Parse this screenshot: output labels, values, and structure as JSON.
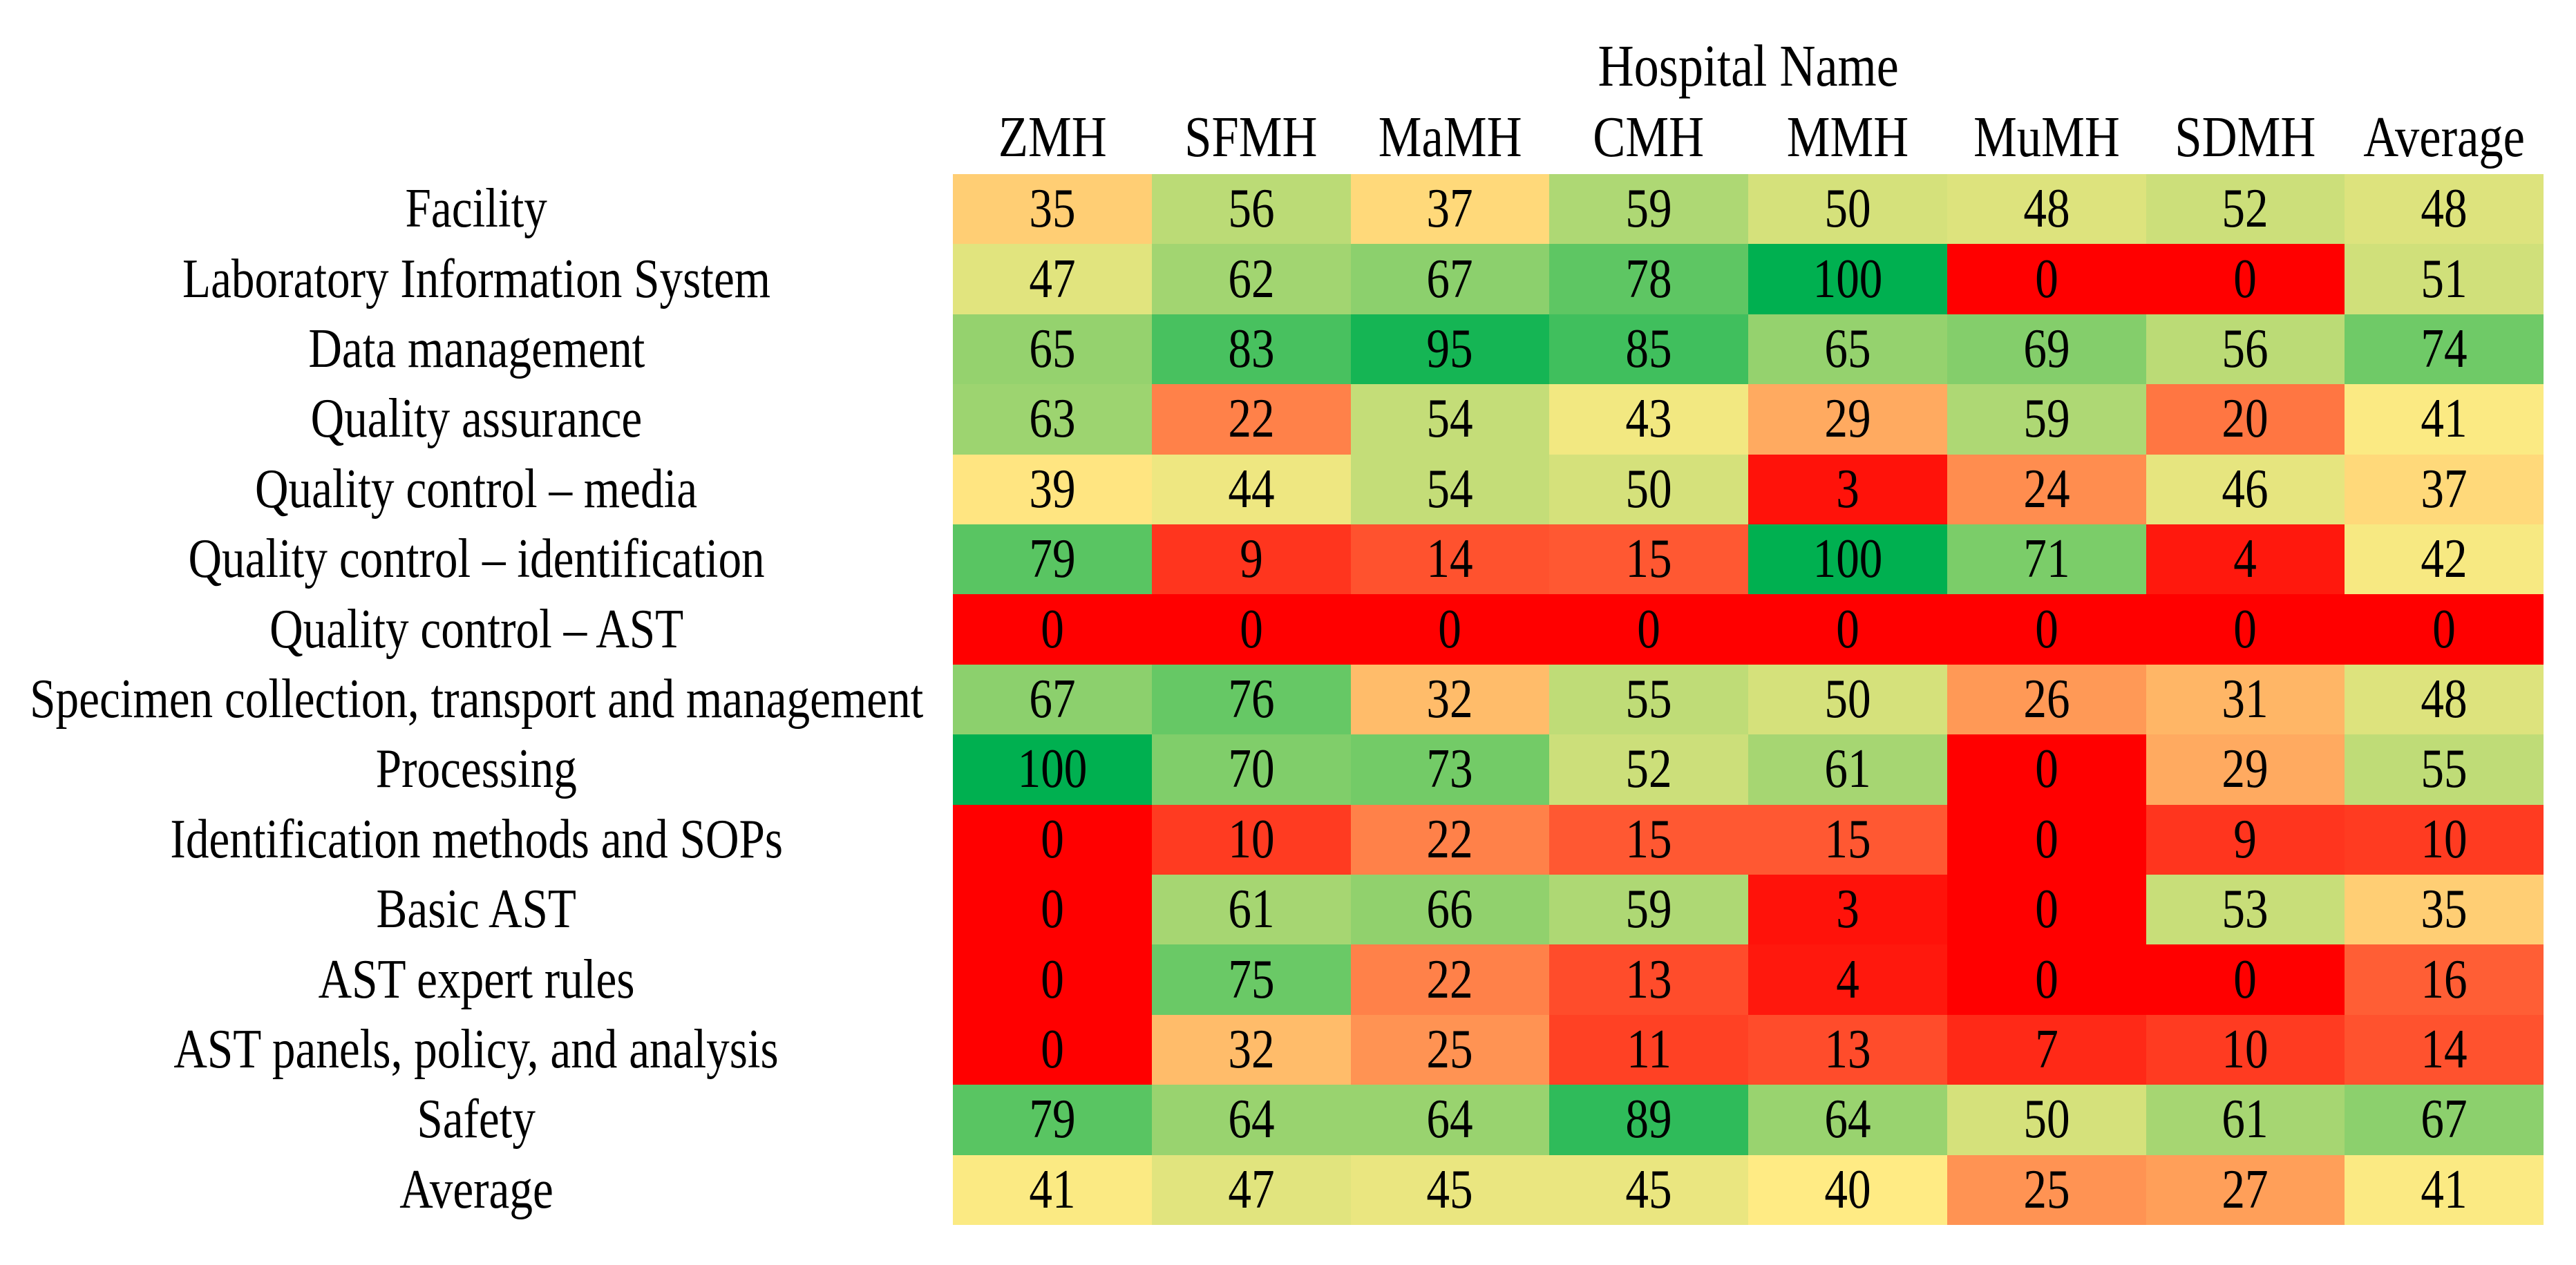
{
  "page": {
    "background": "#FFFFFF",
    "text_color": "#000000"
  },
  "chart_data": {
    "type": "heatmap",
    "title": "Hospital Name",
    "columns": [
      "ZMH",
      "SFMH",
      "MaMH",
      "CMH",
      "MMH",
      "MuMH",
      "SDMH",
      "Average"
    ],
    "rows": [
      "Facility",
      "Laboratory Information System",
      "Data management",
      "Quality assurance",
      "Quality control – media",
      "Quality control – identification",
      "Quality control – AST",
      "Specimen collection, transport and management",
      "Processing",
      "Identification methods and SOPs",
      "Basic AST",
      "AST expert rules",
      "AST panels, policy, and analysis",
      "Safety",
      "Average"
    ],
    "values": [
      [
        35,
        56,
        37,
        59,
        50,
        48,
        52,
        48
      ],
      [
        47,
        62,
        67,
        78,
        100,
        0,
        0,
        51
      ],
      [
        65,
        83,
        95,
        85,
        65,
        69,
        56,
        74
      ],
      [
        63,
        22,
        54,
        43,
        29,
        59,
        20,
        41
      ],
      [
        39,
        44,
        54,
        50,
        3,
        24,
        46,
        37
      ],
      [
        79,
        9,
        14,
        15,
        100,
        71,
        4,
        42
      ],
      [
        0,
        0,
        0,
        0,
        0,
        0,
        0,
        0
      ],
      [
        67,
        76,
        32,
        55,
        50,
        26,
        31,
        48
      ],
      [
        100,
        70,
        73,
        52,
        61,
        0,
        29,
        55
      ],
      [
        0,
        10,
        22,
        15,
        15,
        0,
        9,
        10
      ],
      [
        0,
        61,
        66,
        59,
        3,
        0,
        53,
        35
      ],
      [
        0,
        75,
        22,
        13,
        4,
        0,
        0,
        16
      ],
      [
        0,
        32,
        25,
        11,
        13,
        7,
        10,
        14
      ],
      [
        79,
        64,
        64,
        89,
        64,
        50,
        61,
        67
      ],
      [
        41,
        47,
        45,
        45,
        40,
        25,
        27,
        41
      ]
    ],
    "color_scale": {
      "min_value": 0,
      "mid_value": 40,
      "max_value": 100,
      "min_color": "#FF0000",
      "mid_color": "#FFEB84",
      "max_color": "#00B050"
    },
    "value_text_color": "#000000",
    "legend": "none",
    "grid": "off",
    "xlabel": "",
    "ylabel": ""
  }
}
